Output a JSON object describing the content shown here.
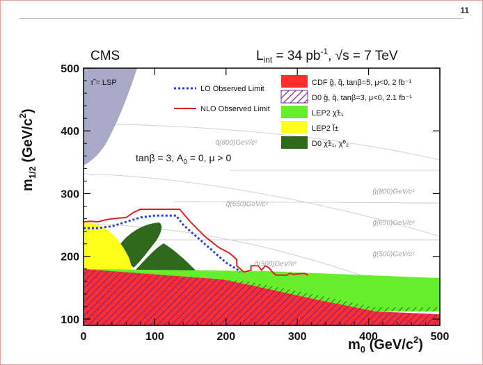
{
  "page": {
    "number": "11"
  },
  "chart_data": {
    "type": "area",
    "experiment": "CMS",
    "luminosity_label": "L",
    "luminosity_sub": "int",
    "luminosity_value": " = 34 pb",
    "luminosity_exp": "-1",
    "energy_label": ", √s = 7 TeV",
    "xlabel": "m",
    "xlabel_sub": "0",
    "xlabel_unit": " (GeV/c",
    "xlabel_unit_exp": "2",
    "xlabel_close": ")",
    "ylabel": "m",
    "ylabel_sub": "1/2",
    "ylabel_unit": " (GeV/c",
    "ylabel_unit_exp": "2",
    "ylabel_close": ")",
    "xlim": [
      0,
      500
    ],
    "ylim": [
      90,
      500
    ],
    "x_ticks": [
      "0",
      "100",
      "200",
      "300",
      "400",
      "500"
    ],
    "y_ticks": [
      "100",
      "200",
      "300",
      "400",
      "500"
    ],
    "model_params": "tanβ = 3,  A",
    "model_params_sub": "0",
    "model_params_rest": " = 0,  μ > 0",
    "stau_lsp_label": "τ̃ = LSP",
    "legend": {
      "lo": "LO Observed Limit",
      "nlo": "NLO Observed Limit",
      "cdf": "CDF  g̃, q̃, tanβ=5, μ<0, 2 fb⁻¹",
      "d0": "D0  g̃, q̃, tanβ=3, μ<0, 2.1 fb⁻¹",
      "lep_chargino": "LEP2  χ̃±₁",
      "lep_slepton": "LEP2  l̃±",
      "d0_chi": "D0  χ̃±₁, χ̃⁰₂"
    },
    "mass_contours": [
      {
        "label": "q̃(500)GeV/c²",
        "kind": "squark",
        "x": 240,
        "y": 185
      },
      {
        "label": "q̃(650)GeV/c²",
        "kind": "squark",
        "x": 200,
        "y": 280
      },
      {
        "label": "q̃(800)GeV/c²",
        "kind": "squark",
        "x": 185,
        "y": 378
      },
      {
        "label": "g̃(500)GeV/c²",
        "kind": "gluino",
        "x": 435,
        "y": 200
      },
      {
        "label": "g̃(650)GeV/c²",
        "kind": "gluino",
        "x": 435,
        "y": 250
      },
      {
        "label": "g̃(800)GeV/c²",
        "kind": "gluino",
        "x": 435,
        "y": 300
      }
    ],
    "series": [
      {
        "name": "LO Observed Limit",
        "style": "dotted",
        "color": "#2a3fd6",
        "points": [
          [
            0,
            245
          ],
          [
            20,
            245
          ],
          [
            40,
            248
          ],
          [
            60,
            255
          ],
          [
            80,
            262
          ],
          [
            100,
            265
          ],
          [
            130,
            265
          ],
          [
            140,
            250
          ],
          [
            160,
            230
          ],
          [
            180,
            210
          ],
          [
            200,
            190
          ],
          [
            210,
            183
          ],
          [
            215,
            180
          ],
          [
            220,
            175
          ]
        ]
      },
      {
        "name": "NLO Observed Limit",
        "style": "solid",
        "color": "#e02020",
        "points": [
          [
            0,
            255
          ],
          [
            10,
            256
          ],
          [
            20,
            255
          ],
          [
            30,
            258
          ],
          [
            40,
            260
          ],
          [
            60,
            262
          ],
          [
            70,
            270
          ],
          [
            80,
            275
          ],
          [
            100,
            275
          ],
          [
            135,
            275
          ],
          [
            150,
            255
          ],
          [
            170,
            232
          ],
          [
            190,
            214
          ],
          [
            205,
            205
          ],
          [
            215,
            195
          ],
          [
            215,
            185
          ],
          [
            220,
            180
          ],
          [
            225,
            175
          ],
          [
            235,
            178
          ],
          [
            235,
            185
          ],
          [
            245,
            185
          ],
          [
            250,
            178
          ],
          [
            255,
            185
          ],
          [
            260,
            182
          ],
          [
            265,
            175
          ],
          [
            270,
            170
          ],
          [
            285,
            170
          ],
          [
            290,
            173
          ],
          [
            295,
            171
          ],
          [
            300,
            172
          ],
          [
            310,
            173
          ],
          [
            315,
            170
          ]
        ]
      }
    ],
    "regions": [
      {
        "name": "τ̃ = LSP",
        "color": "#a7a9c6"
      },
      {
        "name": "CDF",
        "color": "#ff2e2e"
      },
      {
        "name": "D0",
        "color": "#7a1f9a"
      },
      {
        "name": "LEP2 χ̃±₁",
        "color": "#66ee2a"
      },
      {
        "name": "LEP2 l̃±",
        "color": "#ffff1a"
      },
      {
        "name": "D0 χ̃±₁, χ̃⁰₂",
        "color": "#2f6a1c"
      }
    ],
    "grid": false,
    "legend_placement": "top-right"
  }
}
